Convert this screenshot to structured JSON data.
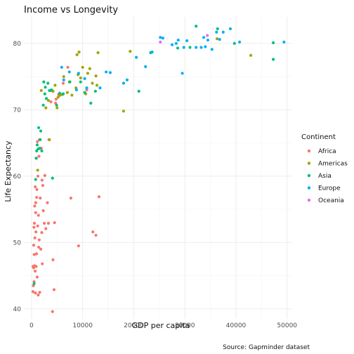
{
  "chart_data": {
    "type": "scatter",
    "title": "Income vs Longevity",
    "xlabel": "GDP per capita",
    "ylabel": "Life Expectancy",
    "caption": "Source: Gapminder dataset",
    "xlim": [
      -1500,
      51000
    ],
    "ylim": [
      38.5,
      84
    ],
    "x_ticks": [
      0,
      10000,
      20000,
      30000,
      40000,
      50000
    ],
    "x_tick_labels": [
      "0",
      "10000",
      "20000",
      "30000",
      "40000",
      "50000"
    ],
    "y_ticks": [
      40,
      50,
      60,
      70,
      80
    ],
    "y_tick_labels": [
      "40",
      "50",
      "60",
      "70",
      "80"
    ],
    "grid": true,
    "legend": {
      "title": "Continent",
      "position": "right",
      "entries": [
        "Africa",
        "Americas",
        "Asia",
        "Europe",
        "Oceania"
      ]
    },
    "colors": {
      "Africa": "#F8766D",
      "Americas": "#A3A500",
      "Asia": "#00BF7D",
      "Europe": "#00B0F6",
      "Oceania": "#E76BF3"
    },
    "series": [
      {
        "name": "Africa",
        "points": [
          [
            277,
            42.6
          ],
          [
            300,
            46.4
          ],
          [
            350,
            43.5
          ],
          [
            400,
            46.2
          ],
          [
            420,
            49.6
          ],
          [
            470,
            52.3
          ],
          [
            500,
            44.1
          ],
          [
            520,
            48.2
          ],
          [
            560,
            52.9
          ],
          [
            580,
            46.5
          ],
          [
            620,
            55.5
          ],
          [
            650,
            50.7
          ],
          [
            700,
            45.7
          ],
          [
            720,
            58.4
          ],
          [
            760,
            42.4
          ],
          [
            800,
            54.5
          ],
          [
            820,
            56.0
          ],
          [
            860,
            51.6
          ],
          [
            900,
            46.4
          ],
          [
            950,
            62.7
          ],
          [
            980,
            48.3
          ],
          [
            1000,
            56.8
          ],
          [
            1050,
            58.0
          ],
          [
            1100,
            44.8
          ],
          [
            1150,
            65.2
          ],
          [
            1200,
            52.5
          ],
          [
            1250,
            60.0
          ],
          [
            1300,
            42.1
          ],
          [
            1350,
            54.1
          ],
          [
            1400,
            49.3
          ],
          [
            1450,
            63.0
          ],
          [
            1500,
            50.4
          ],
          [
            1550,
            65.5
          ],
          [
            1600,
            42.5
          ],
          [
            1700,
            56.7
          ],
          [
            1800,
            49.0
          ],
          [
            1900,
            64.2
          ],
          [
            2000,
            51.5
          ],
          [
            2050,
            59.4
          ],
          [
            2100,
            46.8
          ],
          [
            2200,
            58.6
          ],
          [
            2300,
            54.8
          ],
          [
            2500,
            52.9
          ],
          [
            2600,
            60.1
          ],
          [
            2800,
            52.1
          ],
          [
            3100,
            56.0
          ],
          [
            3300,
            52.9
          ],
          [
            3400,
            65.5
          ],
          [
            3800,
            71.2
          ],
          [
            4100,
            39.6
          ],
          [
            4200,
            47.4
          ],
          [
            4400,
            42.9
          ],
          [
            4500,
            53.0
          ],
          [
            4800,
            71.6
          ],
          [
            5300,
            72.3
          ],
          [
            7100,
            76.4
          ],
          [
            7700,
            56.7
          ],
          [
            12000,
            51.6
          ],
          [
            12600,
            51.1
          ],
          [
            13200,
            56.9
          ],
          [
            9200,
            49.5
          ],
          [
            10800,
            73.0
          ],
          [
            6200,
            74.0
          ],
          [
            4700,
            71.0
          ]
        ]
      },
      {
        "name": "Americas",
        "points": [
          [
            1200,
            60.9
          ],
          [
            1900,
            72.9
          ],
          [
            2800,
            70.3
          ],
          [
            3300,
            71.4
          ],
          [
            3500,
            65.5
          ],
          [
            3800,
            72.9
          ],
          [
            4200,
            72.8
          ],
          [
            4600,
            73.7
          ],
          [
            5000,
            70.3
          ],
          [
            5200,
            71.9
          ],
          [
            5600,
            72.2
          ],
          [
            6000,
            72.3
          ],
          [
            6300,
            75.0
          ],
          [
            7000,
            72.6
          ],
          [
            7400,
            74.2
          ],
          [
            7900,
            72.2
          ],
          [
            8700,
            73.3
          ],
          [
            8900,
            78.3
          ],
          [
            9100,
            75.3
          ],
          [
            9300,
            78.7
          ],
          [
            9600,
            74.8
          ],
          [
            10000,
            76.4
          ],
          [
            10600,
            72.4
          ],
          [
            11000,
            75.5
          ],
          [
            11400,
            76.2
          ],
          [
            11900,
            74.0
          ],
          [
            12600,
            75.1
          ],
          [
            13000,
            78.6
          ],
          [
            18000,
            69.8
          ],
          [
            19300,
            78.8
          ],
          [
            36300,
            80.7
          ],
          [
            42900,
            78.2
          ],
          [
            12800,
            73.7
          ]
        ]
      },
      {
        "name": "Asia",
        "points": [
          [
            500,
            43.8
          ],
          [
            800,
            59.5
          ],
          [
            900,
            62.7
          ],
          [
            1000,
            63.8
          ],
          [
            1100,
            64.7
          ],
          [
            1300,
            64.1
          ],
          [
            1400,
            67.3
          ],
          [
            1600,
            64.2
          ],
          [
            1700,
            65.5
          ],
          [
            1800,
            66.8
          ],
          [
            2000,
            63.8
          ],
          [
            2300,
            70.7
          ],
          [
            2400,
            74.2
          ],
          [
            2600,
            72.4
          ],
          [
            2700,
            73.4
          ],
          [
            2900,
            71.7
          ],
          [
            3200,
            74.0
          ],
          [
            3500,
            72.9
          ],
          [
            3900,
            73.0
          ],
          [
            4100,
            59.7
          ],
          [
            4900,
            70.7
          ],
          [
            5500,
            72.5
          ],
          [
            6200,
            72.4
          ],
          [
            7500,
            74.2
          ],
          [
            9600,
            74.2
          ],
          [
            10400,
            72.6
          ],
          [
            11600,
            71.0
          ],
          [
            12500,
            72.8
          ],
          [
            21000,
            72.8
          ],
          [
            23300,
            78.6
          ],
          [
            28600,
            79.3
          ],
          [
            31000,
            79.4
          ],
          [
            32200,
            82.6
          ],
          [
            39700,
            80.0
          ],
          [
            47300,
            80.1
          ],
          [
            47300,
            77.6
          ],
          [
            36400,
            82.2
          ]
        ]
      },
      {
        "name": "Europe",
        "points": [
          [
            5900,
            76.4
          ],
          [
            6300,
            74.5
          ],
          [
            7400,
            75.7
          ],
          [
            8800,
            73.0
          ],
          [
            9200,
            75.5
          ],
          [
            10400,
            74.7
          ],
          [
            10800,
            73.3
          ],
          [
            13400,
            73.3
          ],
          [
            14600,
            75.7
          ],
          [
            15400,
            75.6
          ],
          [
            18000,
            74.0
          ],
          [
            18700,
            74.5
          ],
          [
            20500,
            77.9
          ],
          [
            22300,
            76.5
          ],
          [
            23600,
            78.7
          ],
          [
            25700,
            80.8
          ],
          [
            27500,
            79.8
          ],
          [
            28700,
            80.5
          ],
          [
            29800,
            79.4
          ],
          [
            30400,
            80.4
          ],
          [
            32200,
            79.4
          ],
          [
            33200,
            79.4
          ],
          [
            33700,
            80.9
          ],
          [
            34000,
            79.5
          ],
          [
            34500,
            80.5
          ],
          [
            35300,
            79.1
          ],
          [
            36200,
            81.7
          ],
          [
            36800,
            80.6
          ],
          [
            37500,
            81.7
          ],
          [
            38900,
            82.2
          ],
          [
            40700,
            80.2
          ],
          [
            49400,
            80.2
          ],
          [
            29500,
            75.5
          ],
          [
            25200,
            80.9
          ],
          [
            28300,
            80.0
          ]
        ]
      },
      {
        "name": "Oceania",
        "points": [
          [
            25200,
            80.2
          ],
          [
            34400,
            81.2
          ]
        ]
      }
    ]
  }
}
